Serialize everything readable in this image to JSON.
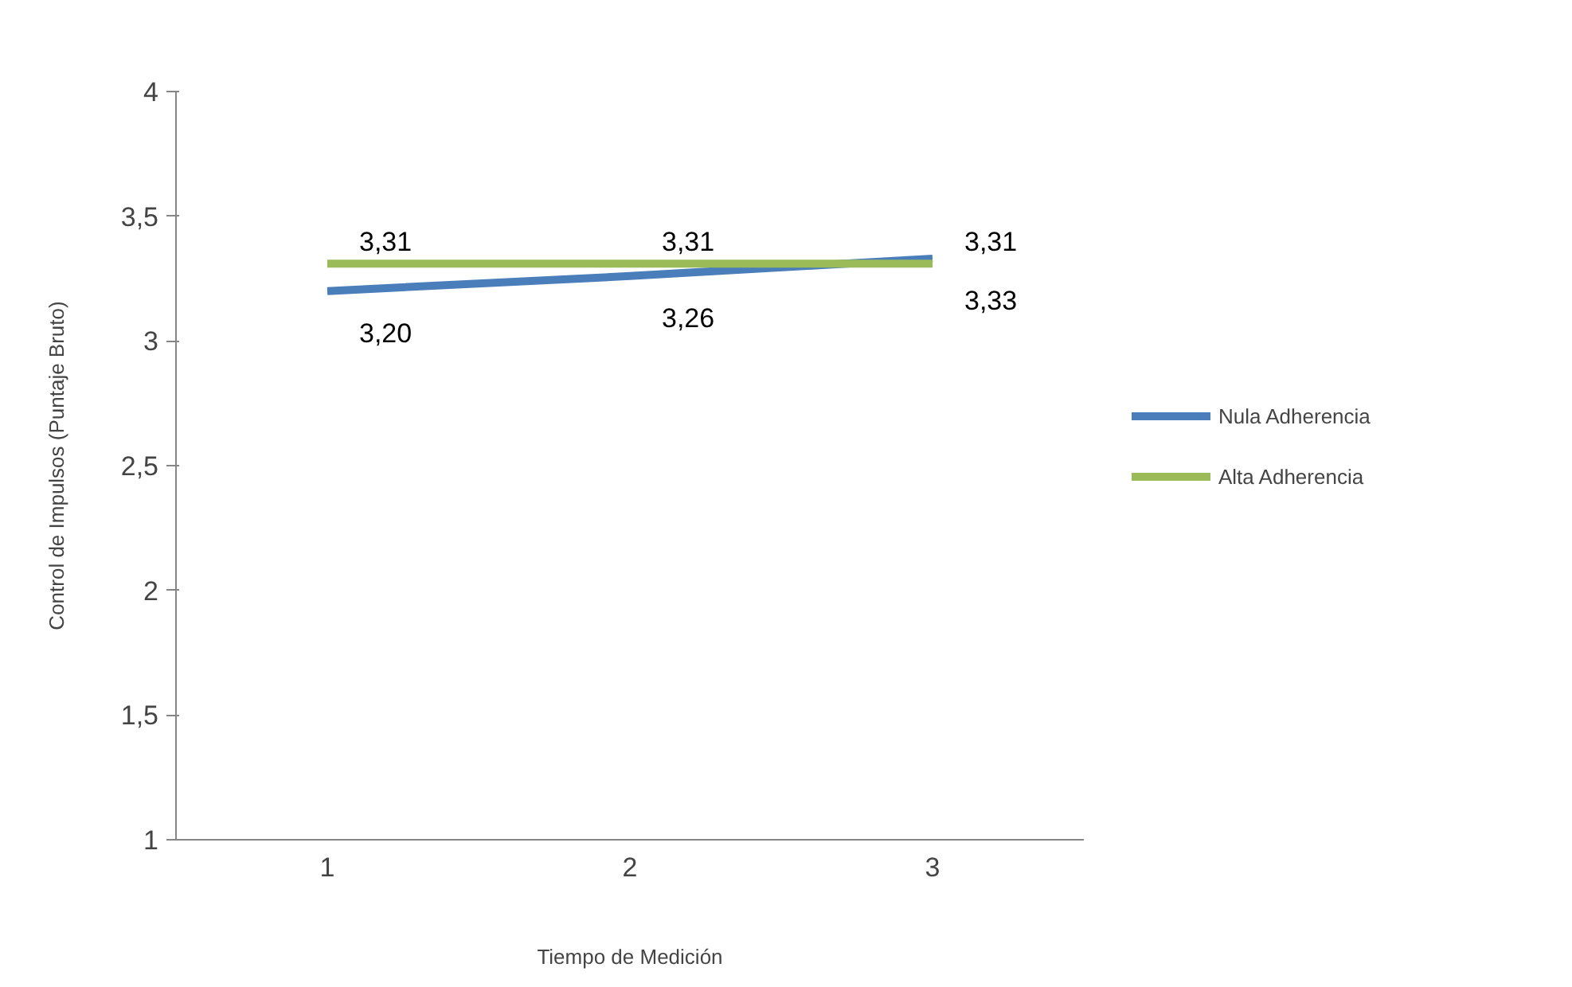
{
  "chart_data": {
    "type": "line",
    "xlabel": "Tiempo de Medición",
    "ylabel": "Control de Impulsos (Puntaje Bruto)",
    "categories": [
      "1",
      "2",
      "3"
    ],
    "series": [
      {
        "name": "Nula Adherencia",
        "color": "#4a7ebb",
        "values": [
          3.2,
          3.26,
          3.33
        ],
        "value_labels": [
          "3,20",
          "3,26",
          "3,33"
        ]
      },
      {
        "name": "Alta Adherencia",
        "color": "#9bbb59",
        "values": [
          3.31,
          3.31,
          3.31
        ],
        "value_labels": [
          "3,31",
          "3,31",
          "3,31"
        ]
      }
    ],
    "ylim": [
      1,
      4
    ],
    "yticks": [
      1,
      {
        "value": 1.5,
        "label": "1,5"
      },
      2,
      {
        "value": 2.5,
        "label": "2,5"
      },
      3,
      {
        "value": 3.5,
        "label": "3,5"
      },
      4
    ],
    "grid": false,
    "legend": "right",
    "marker": "none",
    "line_style": "solid"
  }
}
